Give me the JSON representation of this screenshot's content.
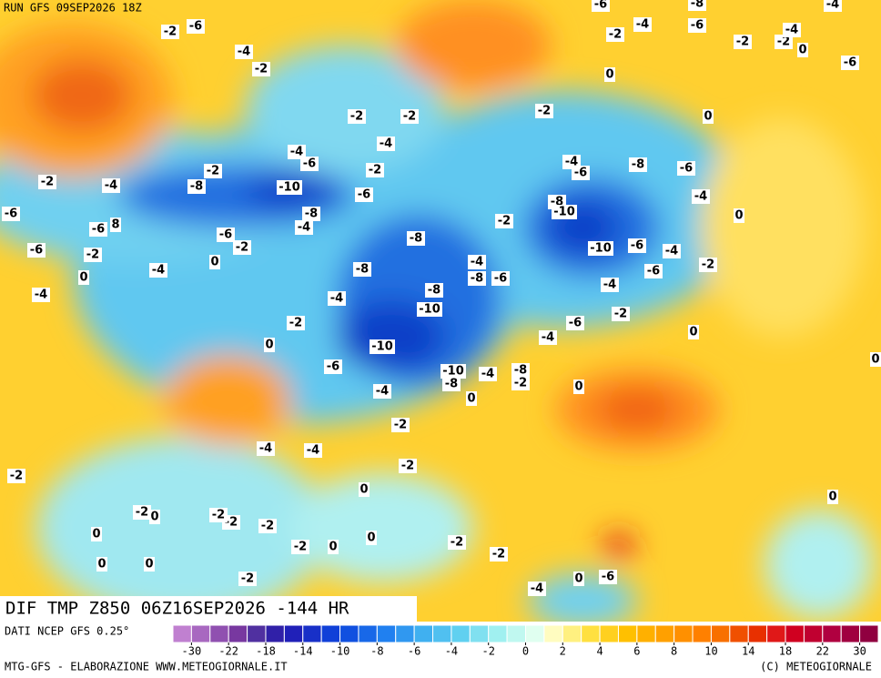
{
  "header": {
    "run": "RUN GFS 09SEP2026 18Z"
  },
  "title": "DIF TMP Z850 06Z16SEP2026 -144 HR",
  "footer": {
    "source": "DATI NCEP GFS 0.25°",
    "credit": "MTG-GFS - ELABORAZIONE WWW.METEOGIORNALE.IT",
    "copyright": "(C) METEOGIORNALE"
  },
  "legend": {
    "ticks": [
      -30,
      -22,
      -18,
      -14,
      -10,
      -8,
      -6,
      -4,
      -2,
      0,
      2,
      4,
      6,
      8,
      10,
      14,
      18,
      22,
      30
    ],
    "colors": [
      "#c080d0",
      "#a868c0",
      "#9050b0",
      "#7838a0",
      "#5030a0",
      "#3020a8",
      "#2020b8",
      "#1830c8",
      "#1040d8",
      "#1050e0",
      "#1868e8",
      "#2080f0",
      "#3098f0",
      "#40b0f0",
      "#50c0f0",
      "#60d0f0",
      "#80e0f0",
      "#a0f0f0",
      "#c0f8f0",
      "#e0fff0",
      "#fffcc0",
      "#fff080",
      "#ffe040",
      "#ffd020",
      "#ffc000",
      "#ffb000",
      "#ffa000",
      "#ff9000",
      "#ff8000",
      "#f87000",
      "#f05000",
      "#e83000",
      "#e01818",
      "#d00020",
      "#c00030",
      "#b00040",
      "#a00040",
      "#900040"
    ]
  },
  "map_labels": [
    "-2",
    "-6",
    "-6",
    "-8",
    "-4",
    "-2",
    "-4",
    "-6",
    "-2",
    "-2",
    "-4",
    "0",
    "-6",
    "-4",
    "-2",
    "0",
    "-2",
    "-2",
    "-2",
    "0",
    "-4",
    "-4",
    "-6",
    "-2",
    "-2",
    "-4",
    "-6",
    "-8",
    "-6",
    "-2",
    "-4",
    "-8",
    "-10",
    "-6",
    "-4",
    "-8",
    "-10",
    "0",
    "-6",
    "-8",
    "-2",
    "-6",
    "8",
    "-4",
    "-6",
    "-2",
    "-8",
    "-10",
    "-6",
    "-4",
    "-6",
    "-2",
    "0",
    "-4",
    "-2",
    "-8",
    "-4",
    "0",
    "-8",
    "-6",
    "-6",
    "-4",
    "-8",
    "-4",
    "-4",
    "-10",
    "-2",
    "-2",
    "-6",
    "0",
    "-4",
    "0",
    "-10",
    "-6",
    "-10",
    "-4",
    "-8",
    "-2",
    "-8",
    "0",
    "0",
    "-4",
    "0",
    "-2",
    "-4",
    "-4",
    "-2",
    "-2",
    "0",
    "0",
    "-2",
    "0",
    "-2",
    "-2",
    "-2",
    "0",
    "0",
    "-2",
    "0",
    "-2",
    "-2",
    "0",
    "0",
    "-2",
    "0",
    "-6",
    "-4"
  ]
}
